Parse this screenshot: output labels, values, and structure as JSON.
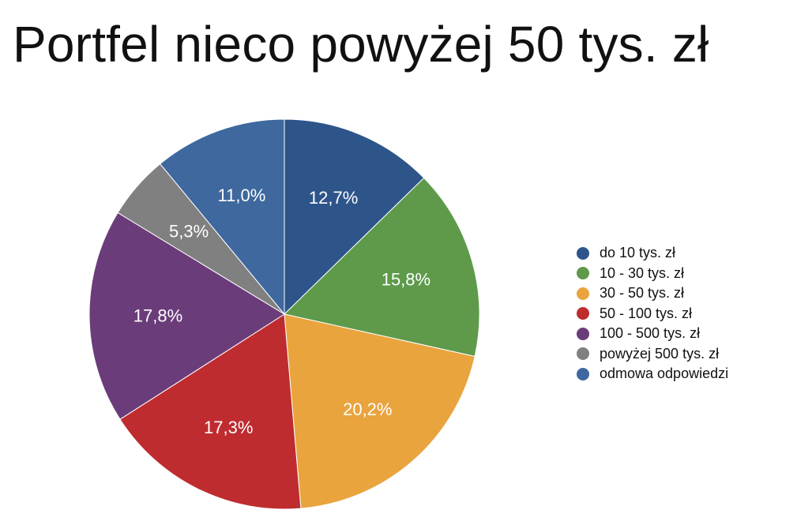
{
  "title": "Portfel nieco powyżej 50 tys. zł",
  "chart_data": {
    "type": "pie",
    "title": "Portfel nieco powyżej 50 tys. zł",
    "start_angle_deg": 0,
    "direction": "clockwise",
    "legend_position": "right",
    "slices": [
      {
        "label": "do 10 tys. zł",
        "value": 12.7,
        "value_label": "12,7%",
        "color": "#2E558A"
      },
      {
        "label": "10 - 30 tys. zł",
        "value": 15.8,
        "value_label": "15,8%",
        "color": "#5E9A4A"
      },
      {
        "label": "30 - 50 tys. zł",
        "value": 20.2,
        "value_label": "20,2%",
        "color": "#E9A43E"
      },
      {
        "label": "50 - 100 tys. zł",
        "value": 17.3,
        "value_label": "17,3%",
        "color": "#BE2C2F"
      },
      {
        "label": "100 - 500 tys. zł",
        "value": 17.8,
        "value_label": "17,8%",
        "color": "#6B3C7A"
      },
      {
        "label": "powyżej 500 tys. zł",
        "value": 5.3,
        "value_label": "5,3%",
        "color": "#808080"
      },
      {
        "label": "odmowa odpowiedzi",
        "value": 11.0,
        "value_label": "11,0%",
        "color": "#3E689E"
      }
    ]
  }
}
